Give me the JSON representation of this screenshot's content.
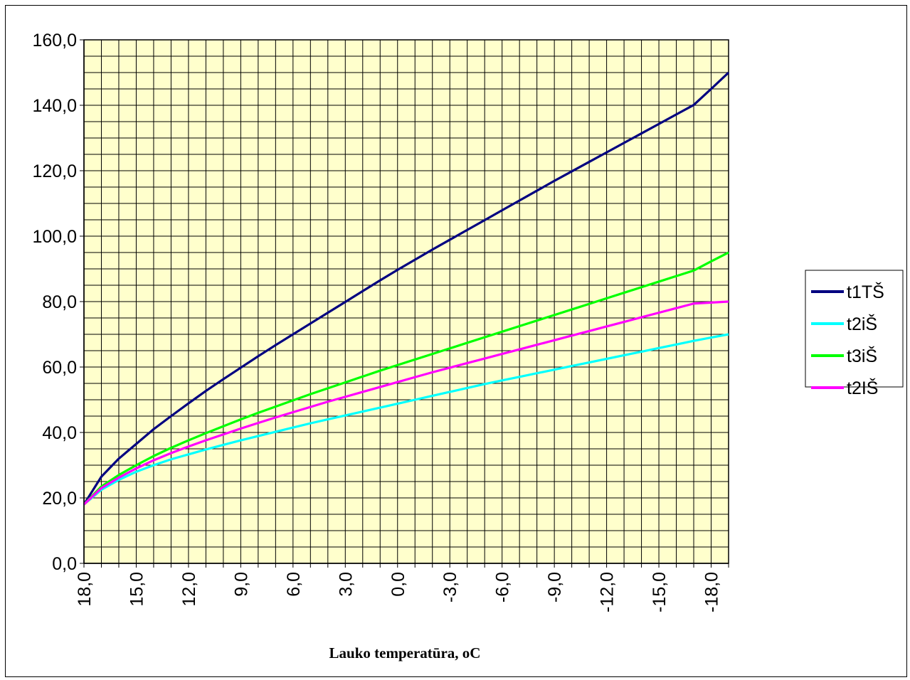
{
  "chart_data": {
    "type": "line",
    "title": "",
    "xlabel": "Lauko temperatūra, oC",
    "ylabel": "",
    "x": [
      18,
      17,
      16,
      15,
      14,
      13,
      12,
      11,
      10,
      9,
      8,
      7,
      6,
      5,
      4,
      3,
      2,
      1,
      0,
      -1,
      -2,
      -3,
      -4,
      -5,
      -6,
      -7,
      -8,
      -9,
      -10,
      -11,
      -12,
      -13,
      -14,
      -15,
      -16,
      -17,
      -18,
      -19
    ],
    "x_tick_labels": [
      "18,0",
      "15,0",
      "12,0",
      "9,0",
      "6,0",
      "3,0",
      "0,0",
      "-3,0",
      "-6,0",
      "-9,0",
      "-12,0",
      "-15,0",
      "-18,0"
    ],
    "y_tick_labels": [
      "0,0",
      "20,0",
      "40,0",
      "60,0",
      "80,0",
      "100,0",
      "120,0",
      "140,0",
      "160,0"
    ],
    "ylim": [
      0,
      160
    ],
    "grid": true,
    "legend_position": "right",
    "plot_background": "#FFFFCC",
    "series": [
      {
        "name": "t1TŠ",
        "color": "#000080",
        "values": [
          18.0,
          26.5,
          32.0,
          36.5,
          41.0,
          45.0,
          48.9,
          52.7,
          56.3,
          59.8,
          63.3,
          66.7,
          70.0,
          73.3,
          76.6,
          79.9,
          83.2,
          86.5,
          89.7,
          92.8,
          95.9,
          98.9,
          101.9,
          104.9,
          107.9,
          110.9,
          113.9,
          116.9,
          119.8,
          122.7,
          125.6,
          128.5,
          131.4,
          134.3,
          137.2,
          140.1,
          145.0,
          150.0
        ]
      },
      {
        "name": "t2iŠ",
        "color": "#00FFFF",
        "values": [
          18.0,
          22.5,
          25.5,
          28.0,
          30.0,
          31.8,
          33.3,
          34.8,
          36.2,
          37.6,
          38.9,
          40.2,
          41.5,
          42.8,
          44.0,
          45.2,
          46.4,
          47.6,
          48.8,
          50.0,
          51.2,
          52.4,
          53.6,
          54.8,
          55.9,
          57.0,
          58.1,
          59.2,
          60.3,
          61.4,
          62.5,
          63.6,
          64.7,
          65.8,
          66.9,
          68.0,
          69.0,
          70.0
        ]
      },
      {
        "name": "t3iŠ",
        "color": "#00FF00",
        "values": [
          18.0,
          23.5,
          27.0,
          30.0,
          32.8,
          35.3,
          37.6,
          39.8,
          41.9,
          44.0,
          46.0,
          47.9,
          49.8,
          51.7,
          53.5,
          55.3,
          57.1,
          58.9,
          60.6,
          62.3,
          64.0,
          65.7,
          67.4,
          69.1,
          70.8,
          72.5,
          74.2,
          75.9,
          77.6,
          79.3,
          81.0,
          82.7,
          84.4,
          86.1,
          87.8,
          89.5,
          92.3,
          95.0
        ]
      },
      {
        "name": "t2IŠ",
        "color": "#FF00FF",
        "values": [
          18.0,
          23.0,
          26.2,
          29.0,
          31.5,
          33.7,
          35.7,
          37.6,
          39.4,
          41.2,
          42.9,
          44.6,
          46.2,
          47.8,
          49.4,
          50.9,
          52.4,
          53.9,
          55.4,
          56.9,
          58.4,
          59.8,
          61.2,
          62.6,
          64.0,
          65.4,
          66.8,
          68.2,
          69.6,
          71.0,
          72.4,
          73.8,
          75.2,
          76.6,
          78.0,
          79.4,
          79.7,
          80.0
        ]
      }
    ]
  }
}
